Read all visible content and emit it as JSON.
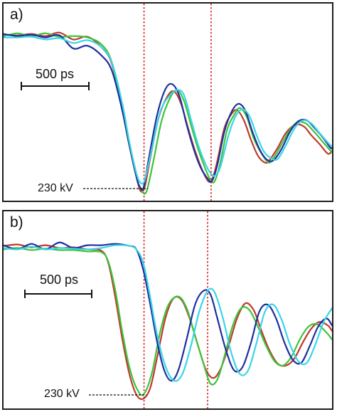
{
  "chart_data": [
    {
      "type": "line",
      "panel_label": "a)",
      "scale_bar_label": "500 ps",
      "annotation_label": "230 kV",
      "x_range": [
        0,
        470
      ],
      "y_range": [
        0,
        285
      ],
      "grid": false,
      "colors": {
        "red": "#c0392b",
        "green": "#3cc43c",
        "blue": "#1f2fa0",
        "cyan": "#3ad5e6",
        "marker": "#d62020"
      },
      "markers_x": [
        201,
        297
      ],
      "series": [
        {
          "color_key": "red",
          "x": [
            0,
            20,
            40,
            60,
            80,
            100,
            120,
            140,
            155,
            170,
            180,
            190,
            196,
            202,
            210,
            222,
            234,
            244,
            254,
            264,
            274,
            284,
            293,
            299,
            306,
            316,
            326,
            334,
            344,
            354,
            364,
            374,
            380,
            392,
            404,
            418,
            430,
            440,
            452,
            464,
            470
          ],
          "y": [
            240,
            239,
            241,
            238,
            243,
            233,
            237,
            222,
            198,
            130,
            80,
            35,
            14,
            20,
            62,
            120,
            150,
            158,
            140,
            105,
            72,
            45,
            28,
            32,
            58,
            105,
            125,
            131,
            116,
            88,
            65,
            55,
            58,
            76,
            98,
            110,
            107,
            95,
            82,
            68,
            72
          ]
        },
        {
          "color_key": "green",
          "x": [
            0,
            20,
            40,
            60,
            80,
            100,
            120,
            140,
            155,
            170,
            180,
            190,
            196,
            204,
            214,
            226,
            238,
            248,
            258,
            268,
            278,
            288,
            296,
            302,
            310,
            320,
            330,
            338,
            348,
            358,
            368,
            378,
            384,
            396,
            408,
            420,
            432,
            444,
            456,
            468,
            470
          ],
          "y": [
            238,
            242,
            238,
            242,
            237,
            238,
            236,
            226,
            200,
            130,
            80,
            35,
            18,
            12,
            55,
            115,
            148,
            160,
            145,
            110,
            76,
            48,
            30,
            28,
            54,
            103,
            124,
            134,
            121,
            90,
            70,
            56,
            58,
            78,
            100,
            113,
            112,
            100,
            86,
            72,
            70
          ]
        },
        {
          "color_key": "blue",
          "x": [
            0,
            20,
            40,
            60,
            80,
            100,
            120,
            140,
            155,
            170,
            180,
            190,
            194,
            200,
            208,
            220,
            232,
            242,
            252,
            262,
            272,
            282,
            292,
            298,
            306,
            316,
            326,
            336,
            346,
            356,
            366,
            376,
            386,
            398,
            410,
            422,
            434,
            446,
            458,
            468,
            470
          ],
          "y": [
            241,
            238,
            240,
            236,
            239,
            220,
            224,
            210,
            188,
            130,
            80,
            35,
            22,
            18,
            62,
            125,
            162,
            168,
            150,
            110,
            75,
            48,
            32,
            28,
            52,
            100,
            128,
            140,
            130,
            100,
            75,
            60,
            58,
            75,
            100,
            115,
            116,
            104,
            90,
            76,
            78
          ]
        },
        {
          "color_key": "cyan",
          "x": [
            0,
            20,
            40,
            60,
            80,
            100,
            120,
            140,
            155,
            170,
            180,
            190,
            196,
            202,
            212,
            224,
            236,
            248,
            258,
            268,
            278,
            288,
            296,
            302,
            310,
            322,
            332,
            342,
            352,
            362,
            372,
            382,
            392,
            404,
            416,
            428,
            440,
            452,
            464,
            470
          ],
          "y": [
            236,
            236,
            237,
            233,
            235,
            228,
            232,
            222,
            200,
            140,
            85,
            40,
            26,
            30,
            74,
            128,
            150,
            160,
            153,
            118,
            82,
            55,
            40,
            36,
            48,
            95,
            122,
            132,
            122,
            95,
            72,
            62,
            60,
            80,
            104,
            116,
            112,
            98,
            84,
            78
          ]
        }
      ]
    },
    {
      "type": "line",
      "panel_label": "b)",
      "scale_bar_label": "500 ps",
      "annotation_label": "230 kV",
      "x_range": [
        0,
        470
      ],
      "y_range": [
        0,
        285
      ],
      "grid": false,
      "colors": {
        "red": "#c0392b",
        "green": "#3cc43c",
        "blue": "#1f2fa0",
        "cyan": "#3ad5e6",
        "marker": "#d62020"
      },
      "markers_x": [
        201,
        292
      ],
      "series": [
        {
          "color_key": "red",
          "x": [
            0,
            20,
            40,
            60,
            80,
            100,
            120,
            140,
            150,
            160,
            170,
            180,
            190,
            200,
            210,
            220,
            232,
            244,
            256,
            268,
            280,
            290,
            300,
            310,
            322,
            334,
            346,
            358,
            368,
            380,
            392,
            404,
            416,
            428,
            440,
            452,
            464,
            470
          ],
          "y": [
            235,
            237,
            233,
            236,
            232,
            233,
            230,
            228,
            210,
            160,
            100,
            50,
            20,
            14,
            30,
            75,
            132,
            160,
            155,
            125,
            85,
            55,
            44,
            56,
            90,
            130,
            152,
            142,
            115,
            85,
            65,
            62,
            72,
            95,
            115,
            125,
            120,
            112
          ]
        },
        {
          "color_key": "green",
          "x": [
            0,
            20,
            40,
            60,
            80,
            100,
            120,
            140,
            150,
            160,
            170,
            180,
            190,
            200,
            212,
            224,
            236,
            250,
            262,
            274,
            286,
            296,
            306,
            316,
            328,
            340,
            352,
            364,
            376,
            388,
            400,
            412,
            424,
            436,
            448,
            460,
            470
          ],
          "y": [
            230,
            232,
            229,
            231,
            229,
            229,
            227,
            226,
            212,
            170,
            110,
            60,
            30,
            20,
            50,
            110,
            150,
            162,
            145,
            105,
            65,
            36,
            42,
            75,
            120,
            145,
            142,
            118,
            90,
            68,
            62,
            75,
            100,
            118,
            122,
            112,
            100
          ]
        },
        {
          "color_key": "blue",
          "x": [
            0,
            20,
            40,
            60,
            80,
            100,
            120,
            140,
            160,
            180,
            190,
            200,
            210,
            220,
            230,
            240,
            250,
            262,
            274,
            286,
            296,
            306,
            318,
            330,
            342,
            354,
            366,
            378,
            390,
            402,
            414,
            426,
            438,
            450,
            462,
            470
          ],
          "y": [
            236,
            230,
            238,
            230,
            240,
            232,
            236,
            236,
            238,
            235,
            230,
            200,
            150,
            95,
            55,
            40,
            55,
            100,
            150,
            170,
            165,
            130,
            85,
            55,
            60,
            95,
            140,
            150,
            130,
            95,
            70,
            66,
            90,
            118,
            130,
            120
          ]
        },
        {
          "color_key": "cyan",
          "x": [
            0,
            20,
            40,
            60,
            80,
            100,
            120,
            140,
            160,
            180,
            190,
            200,
            210,
            220,
            232,
            244,
            256,
            268,
            280,
            292,
            302,
            314,
            326,
            338,
            350,
            362,
            374,
            386,
            398,
            410,
            422,
            434,
            446,
            458,
            470
          ],
          "y": [
            232,
            230,
            234,
            230,
            232,
            231,
            230,
            232,
            236,
            235,
            230,
            210,
            160,
            105,
            60,
            40,
            50,
            90,
            140,
            170,
            168,
            130,
            80,
            50,
            55,
            95,
            140,
            150,
            128,
            92,
            68,
            66,
            92,
            125,
            145
          ]
        }
      ]
    }
  ]
}
